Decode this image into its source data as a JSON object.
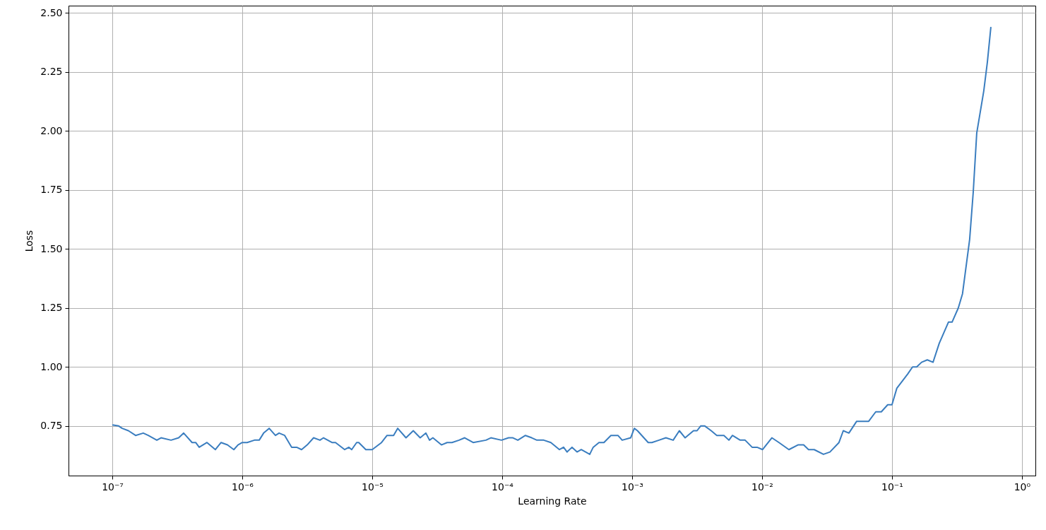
{
  "chart_data": {
    "type": "line",
    "xlabel": "Learning Rate",
    "ylabel": "Loss",
    "log": "x",
    "grid": true,
    "marker": "none",
    "line_style": "solid",
    "xlim": [
      4.6e-08,
      1.27
    ],
    "ylim": [
      0.54,
      2.53
    ],
    "xticks": [
      {
        "value": 1e-07,
        "label": "10⁻⁷"
      },
      {
        "value": 1e-06,
        "label": "10⁻⁶"
      },
      {
        "value": 1e-05,
        "label": "10⁻⁵"
      },
      {
        "value": 0.0001,
        "label": "10⁻⁴"
      },
      {
        "value": 0.001,
        "label": "10⁻³"
      },
      {
        "value": 0.01,
        "label": "10⁻²"
      },
      {
        "value": 0.1,
        "label": "10⁻¹"
      },
      {
        "value": 1,
        "label": "10⁰"
      }
    ],
    "yticks": [
      {
        "value": 0.75,
        "label": "0.75"
      },
      {
        "value": 1.0,
        "label": "1.00"
      },
      {
        "value": 1.25,
        "label": "1.25"
      },
      {
        "value": 1.5,
        "label": "1.50"
      },
      {
        "value": 1.75,
        "label": "1.75"
      },
      {
        "value": 2.0,
        "label": "2.00"
      },
      {
        "value": 2.25,
        "label": "2.25"
      },
      {
        "value": 2.5,
        "label": "2.50"
      }
    ],
    "series": [
      {
        "color": "#3a7dbf",
        "x": [
          1e-07,
          1.12e-07,
          1.19e-07,
          1.33e-07,
          1.51e-07,
          1.73e-07,
          1.89e-07,
          2.2e-07,
          2.37e-07,
          2.83e-07,
          3.24e-07,
          3.54e-07,
          4.11e-07,
          4.38e-07,
          4.66e-07,
          5.35e-07,
          6.21e-07,
          6.87e-07,
          7.69e-07,
          8.61e-07,
          9.27e-07,
          1e-06,
          1.09e-06,
          1.24e-06,
          1.35e-06,
          1.46e-06,
          1.61e-06,
          1.8e-06,
          1.92e-06,
          2.12e-06,
          2.4e-06,
          2.62e-06,
          2.86e-06,
          3.16e-06,
          3.54e-06,
          3.96e-06,
          4.22e-06,
          4.9e-06,
          5.22e-06,
          6.14e-06,
          6.62e-06,
          6.95e-06,
          7.59e-06,
          7.88e-06,
          8.93e-06,
          1e-05,
          1.18e-05,
          1.3e-05,
          1.46e-05,
          1.57e-05,
          1.82e-05,
          2.07e-05,
          2.34e-05,
          2.59e-05,
          2.76e-05,
          2.93e-05,
          3.41e-05,
          3.77e-05,
          4.11e-05,
          4.66e-05,
          5.15e-05,
          5.98e-05,
          7.5e-05,
          8.19e-05,
          9.88e-05,
          0.000112,
          0.000121,
          0.000132,
          0.000151,
          0.000169,
          0.000185,
          0.000209,
          0.000237,
          0.000276,
          0.000297,
          0.000316,
          0.000345,
          0.000377,
          0.000406,
          0.000472,
          0.000502,
          0.000556,
          0.000607,
          0.000687,
          0.000778,
          0.000839,
          0.000975,
          0.00104,
          0.0011,
          0.00133,
          0.00142,
          0.00161,
          0.00182,
          0.00207,
          0.00231,
          0.00256,
          0.00297,
          0.00316,
          0.00337,
          0.00363,
          0.00406,
          0.00449,
          0.00509,
          0.00556,
          0.00592,
          0.00679,
          0.00741,
          0.00839,
          0.00916,
          0.0101,
          0.0119,
          0.0135,
          0.0161,
          0.0189,
          0.0209,
          0.0228,
          0.0252,
          0.0297,
          0.0333,
          0.0391,
          0.0422,
          0.0466,
          0.0535,
          0.0607,
          0.0662,
          0.075,
          0.0828,
          0.0927,
          0.1,
          0.109,
          0.132,
          0.144,
          0.155,
          0.169,
          0.187,
          0.207,
          0.231,
          0.272,
          0.29,
          0.324,
          0.349,
          0.396,
          0.422,
          0.449,
          0.509,
          0.542,
          0.577
        ],
        "values": [
          0.755,
          0.75,
          0.74,
          0.73,
          0.71,
          0.72,
          0.71,
          0.69,
          0.7,
          0.69,
          0.7,
          0.72,
          0.68,
          0.68,
          0.66,
          0.68,
          0.65,
          0.68,
          0.67,
          0.65,
          0.67,
          0.68,
          0.68,
          0.69,
          0.69,
          0.72,
          0.74,
          0.71,
          0.72,
          0.71,
          0.66,
          0.66,
          0.65,
          0.67,
          0.7,
          0.69,
          0.7,
          0.68,
          0.68,
          0.65,
          0.66,
          0.65,
          0.68,
          0.68,
          0.65,
          0.65,
          0.68,
          0.71,
          0.71,
          0.74,
          0.7,
          0.73,
          0.7,
          0.72,
          0.69,
          0.7,
          0.67,
          0.68,
          0.68,
          0.69,
          0.7,
          0.68,
          0.69,
          0.7,
          0.69,
          0.7,
          0.7,
          0.69,
          0.71,
          0.7,
          0.69,
          0.69,
          0.68,
          0.65,
          0.66,
          0.64,
          0.66,
          0.64,
          0.65,
          0.63,
          0.66,
          0.68,
          0.68,
          0.71,
          0.71,
          0.69,
          0.7,
          0.74,
          0.73,
          0.68,
          0.68,
          0.69,
          0.7,
          0.69,
          0.73,
          0.7,
          0.73,
          0.73,
          0.75,
          0.75,
          0.73,
          0.71,
          0.71,
          0.69,
          0.71,
          0.69,
          0.69,
          0.66,
          0.66,
          0.65,
          0.7,
          0.68,
          0.65,
          0.67,
          0.67,
          0.65,
          0.65,
          0.63,
          0.64,
          0.68,
          0.73,
          0.72,
          0.77,
          0.77,
          0.77,
          0.81,
          0.81,
          0.84,
          0.84,
          0.91,
          0.97,
          1.0,
          1.0,
          1.02,
          1.03,
          1.02,
          1.1,
          1.19,
          1.19,
          1.25,
          1.31,
          1.54,
          1.74,
          1.99,
          2.17,
          2.29,
          2.44
        ]
      }
    ]
  }
}
